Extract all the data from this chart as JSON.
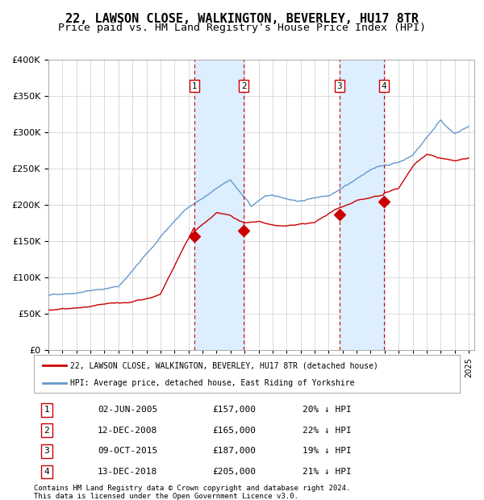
{
  "title": "22, LAWSON CLOSE, WALKINGTON, BEVERLEY, HU17 8TR",
  "subtitle": "Price paid vs. HM Land Registry's House Price Index (HPI)",
  "title_fontsize": 11,
  "subtitle_fontsize": 9.5,
  "ylabel": "",
  "ylim": [
    0,
    400000
  ],
  "yticks": [
    0,
    50000,
    100000,
    150000,
    200000,
    250000,
    300000,
    350000,
    400000
  ],
  "xlim_start": 1995.0,
  "xlim_end": 2025.4,
  "legend_line1": "22, LAWSON CLOSE, WALKINGTON, BEVERLEY, HU17 8TR (detached house)",
  "legend_line2": "HPI: Average price, detached house, East Riding of Yorkshire",
  "transactions": [
    {
      "num": 1,
      "date": 2005.42,
      "price": 157000,
      "label": "02-JUN-2005",
      "pct": "20%"
    },
    {
      "num": 2,
      "date": 2008.95,
      "price": 165000,
      "label": "12-DEC-2008",
      "pct": "22%"
    },
    {
      "num": 3,
      "date": 2015.77,
      "price": 187000,
      "label": "09-OCT-2015",
      "pct": "19%"
    },
    {
      "num": 4,
      "date": 2018.95,
      "price": 205000,
      "label": "13-DEC-2018",
      "pct": "21%"
    }
  ],
  "footer1": "Contains HM Land Registry data © Crown copyright and database right 2024.",
  "footer2": "This data is licensed under the Open Government Licence v3.0.",
  "hpi_color": "#6699cc",
  "price_color": "#cc0000",
  "transaction_color": "#cc0000",
  "shading_color": "#ddeeff",
  "grid_color": "#cccccc",
  "background_color": "#ffffff"
}
